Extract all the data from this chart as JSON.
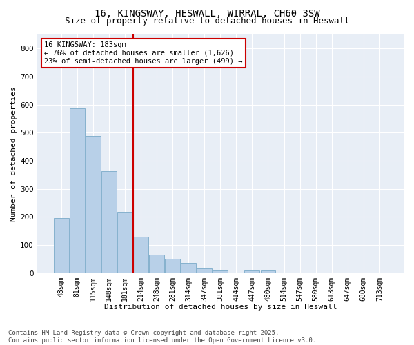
{
  "title1": "16, KINGSWAY, HESWALL, WIRRAL, CH60 3SW",
  "title2": "Size of property relative to detached houses in Heswall",
  "xlabel": "Distribution of detached houses by size in Heswall",
  "ylabel": "Number of detached properties",
  "bar_color": "#b8d0e8",
  "bar_edge_color": "#7aaac8",
  "background_color": "#e8eef6",
  "grid_color": "#ffffff",
  "categories": [
    "48sqm",
    "81sqm",
    "115sqm",
    "148sqm",
    "181sqm",
    "214sqm",
    "248sqm",
    "281sqm",
    "314sqm",
    "347sqm",
    "381sqm",
    "414sqm",
    "447sqm",
    "480sqm",
    "514sqm",
    "547sqm",
    "580sqm",
    "613sqm",
    "647sqm",
    "680sqm",
    "713sqm"
  ],
  "values": [
    196,
    588,
    488,
    362,
    218,
    130,
    65,
    50,
    36,
    16,
    10,
    0,
    10,
    9,
    0,
    0,
    0,
    0,
    0,
    0,
    0
  ],
  "marker_bin_index": 4,
  "marker_label": "16 KINGSWAY: 183sqm",
  "annotation_line1": "← 76% of detached houses are smaller (1,626)",
  "annotation_line2": "23% of semi-detached houses are larger (499) →",
  "ylim": [
    0,
    850
  ],
  "yticks": [
    0,
    100,
    200,
    300,
    400,
    500,
    600,
    700,
    800
  ],
  "footer1": "Contains HM Land Registry data © Crown copyright and database right 2025.",
  "footer2": "Contains public sector information licensed under the Open Government Licence v3.0.",
  "annotation_box_color": "#cc0000",
  "marker_line_color": "#cc0000",
  "title_fontsize": 10,
  "subtitle_fontsize": 9,
  "axis_label_fontsize": 8,
  "tick_fontsize": 7,
  "annotation_fontsize": 7.5,
  "footer_fontsize": 6.5
}
